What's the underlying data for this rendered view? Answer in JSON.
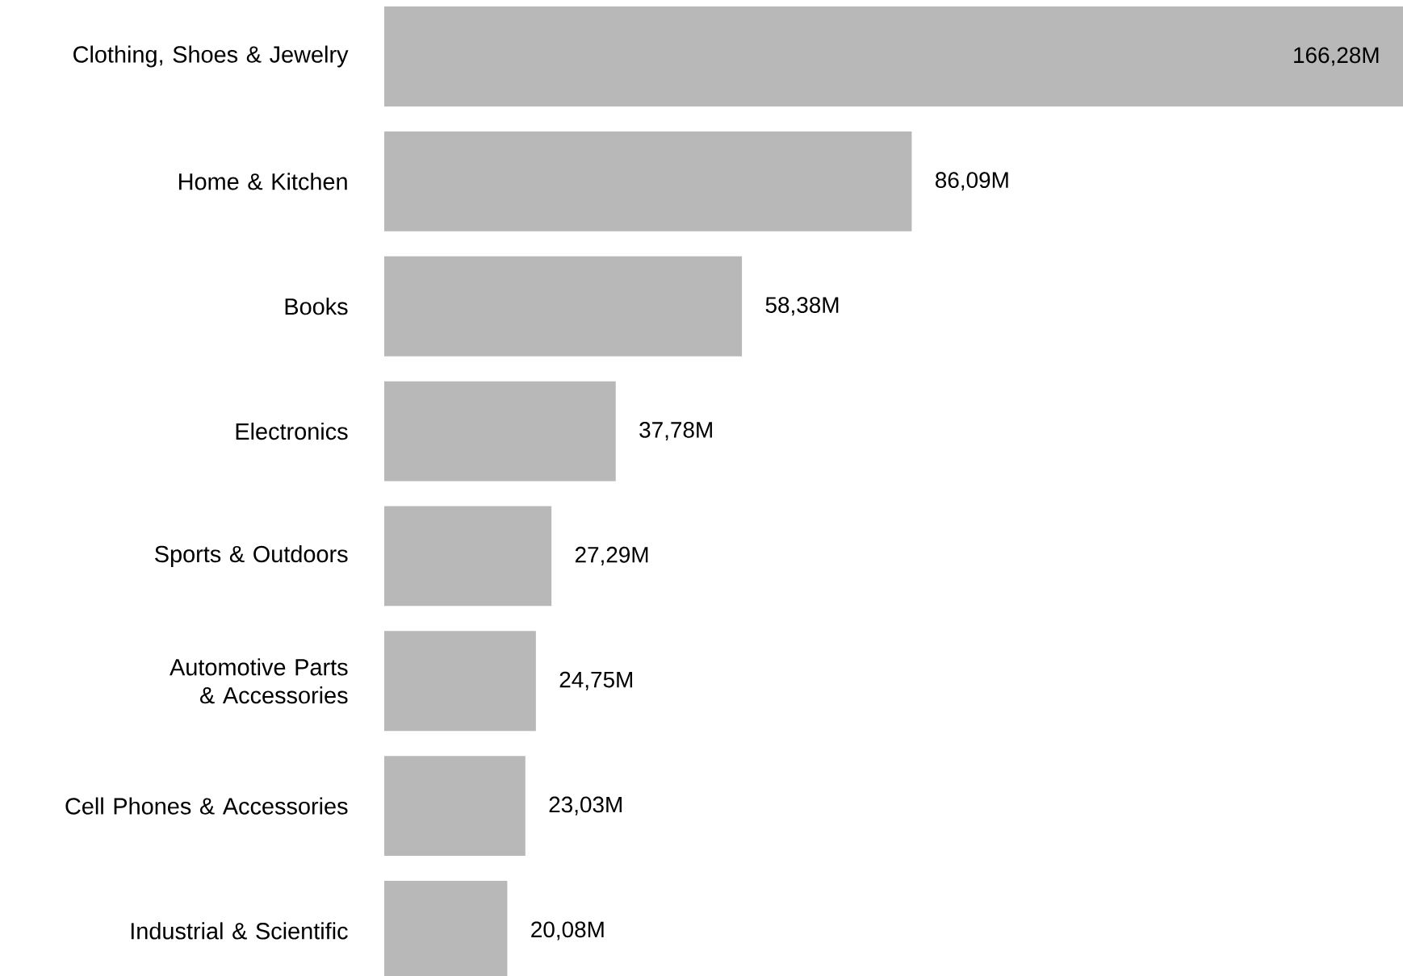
{
  "chart_data": {
    "type": "bar",
    "orientation": "horizontal",
    "categories": [
      "Clothing, Shoes & Jewelry",
      "Home & Kitchen",
      "Books",
      "Electronics",
      "Sports & Outdoors",
      "Automotive Parts & Accessories",
      "Cell Phones & Accessories",
      "Industrial & Scientific"
    ],
    "values": [
      166.28,
      86.09,
      58.38,
      37.78,
      27.29,
      24.75,
      23.03,
      20.08
    ],
    "value_labels": [
      "166,28M",
      "86,09M",
      "58,38M",
      "37,78M",
      "27,29M",
      "24,75M",
      "23,03M",
      "20,08M"
    ],
    "color": "#b8b8b8"
  }
}
